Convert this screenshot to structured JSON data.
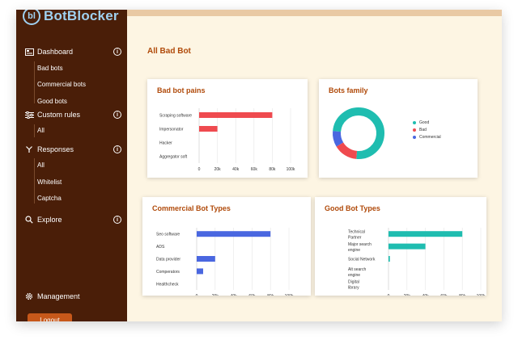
{
  "app": {
    "logo_mark": "bl",
    "logo_text": "BotBlocker"
  },
  "sidebar": {
    "dashboard": {
      "label": "Dashboard",
      "info": "i"
    },
    "dashboard_items": [
      "Bad bots",
      "Commercial bots",
      "Good bots"
    ],
    "custom_rules": {
      "label": "Custom rules",
      "info": "i"
    },
    "custom_rules_items": [
      "All"
    ],
    "responses": {
      "label": "Responses",
      "info": "i"
    },
    "responses_items": [
      "All",
      "Whitelist",
      "Captcha"
    ],
    "explore": {
      "label": "Explore",
      "info": "i"
    },
    "management": {
      "label": "Management"
    },
    "logout": "Logout"
  },
  "main": {
    "title": "All Bad Bot"
  },
  "colors": {
    "bad": "#ef4a4f",
    "good": "#1fbdb0",
    "commercial": "#4a67e0",
    "accent": "#b04a0a",
    "sidebar_bg": "#4a1e08"
  },
  "chart_data": [
    {
      "id": "bad-bot-pains",
      "type": "bar",
      "orientation": "horizontal",
      "title": "Bad bot pains",
      "categories": [
        "Scraping software",
        "Impersonator",
        "Hacker",
        "Aggregator soft"
      ],
      "values": [
        80000,
        20000,
        0,
        0
      ],
      "xlim": [
        0,
        100000
      ],
      "xticks": [
        "0",
        "20k",
        "40k",
        "60k",
        "80k",
        "100k"
      ],
      "color": "#ef4a4f"
    },
    {
      "id": "bots-family",
      "type": "pie",
      "donut": true,
      "title": "Bots family",
      "labels": [
        "Good",
        "Bad",
        "Commercial"
      ],
      "values": [
        75,
        15,
        10
      ],
      "colors": [
        "#1fbdb0",
        "#ef4a4f",
        "#4a67e0"
      ],
      "legend_position": "right"
    },
    {
      "id": "commercial-bot-types",
      "type": "bar",
      "orientation": "horizontal",
      "title": "Commercial Bot Types",
      "categories": [
        "Seo software",
        "ADS",
        "Data provider",
        "Comperators",
        "Healthcheck"
      ],
      "values": [
        80000,
        0,
        20000,
        7000,
        0
      ],
      "xlim": [
        0,
        100000
      ],
      "xticks": [
        "0",
        "20k",
        "40k",
        "60k",
        "80k",
        "100k"
      ],
      "color": "#4a67e0"
    },
    {
      "id": "good-bot-types",
      "type": "bar",
      "orientation": "horizontal",
      "title": "Good Bot Types",
      "categories": [
        "Technical Partner",
        "Major search engine",
        "Social Network",
        "Alt search engine",
        "Digital library"
      ],
      "values": [
        80000,
        40000,
        1500,
        0,
        0
      ],
      "xlim": [
        0,
        100000
      ],
      "xticks": [
        "0",
        "20k",
        "40k",
        "60k",
        "80k",
        "100k"
      ],
      "color": "#1fbdb0"
    }
  ]
}
